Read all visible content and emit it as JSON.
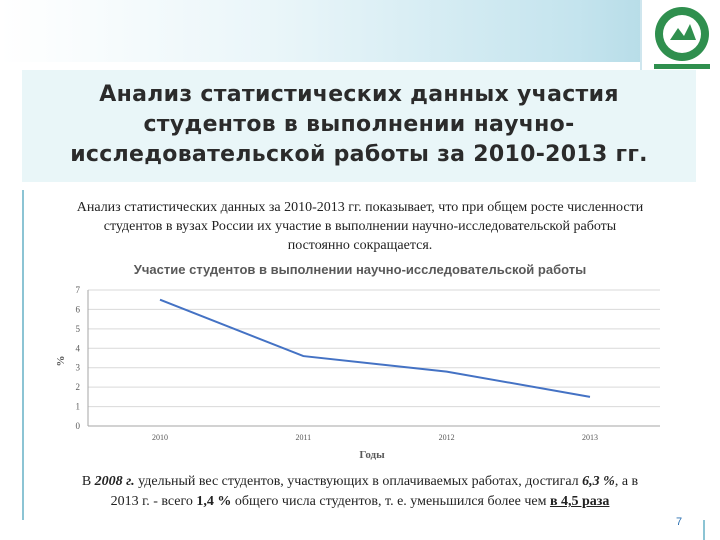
{
  "slide": {
    "title_lines": [
      "Анализ статистических данных участия",
      "студентов в выполнении научно-",
      "исследовательской работы за 2010-2013 гг."
    ],
    "intro_lines": [
      "Анализ статистических данных за 2010-2013 гг. показывает, что при общем росте численности",
      "студентов в вузах России их участие в выполнении научно-исследовательской работы",
      "постоянно сокращается."
    ],
    "footer": {
      "p1": "В ",
      "year1": "2008 г.",
      "p2": " удельный вес студентов, участвующих в оплачиваемых работах, достигал ",
      "val1": "6,3 %",
      "p3": ", а в",
      "p4": "2013 г. - всего ",
      "val2": "1,4 %",
      "p5": " общего числа студентов, т. е. уменьшился более чем ",
      "ratio": "в 4,5 раза"
    },
    "page_number": "7"
  },
  "colors": {
    "line": "#4472c4",
    "grid": "#d9d9d9",
    "axis": "#a6a6a6"
  },
  "chart_data": {
    "type": "line",
    "title": "Участие студентов в выполнении научно-исследовательской работы",
    "xlabel": "Годы",
    "ylabel": "%",
    "categories": [
      "2010",
      "2011",
      "2012",
      "2013"
    ],
    "values": [
      6.5,
      3.6,
      2.8,
      1.5
    ],
    "ylim": [
      0,
      7
    ],
    "yticks": [
      "0",
      "1",
      "2",
      "3",
      "4",
      "5",
      "6",
      "7"
    ],
    "grid": true
  }
}
